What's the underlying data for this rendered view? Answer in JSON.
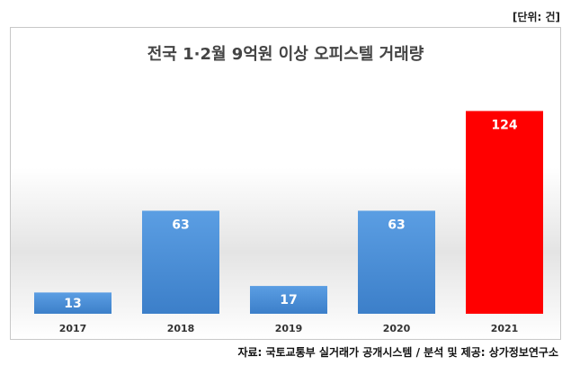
{
  "unit_label": "[단위: 건]",
  "source_text": "자료: 국토교통부 실거래가 공개시스템 / 분석 및 제공: 상가정보연구소",
  "chart_data": {
    "type": "bar",
    "title": "전국 1·2월 9억원 이상 오피스텔 거래량",
    "categories": [
      "2017",
      "2018",
      "2019",
      "2020",
      "2021"
    ],
    "values": [
      13,
      63,
      17,
      63,
      124
    ],
    "colors": [
      "#4a8fd8",
      "#4a8fd8",
      "#4a8fd8",
      "#4a8fd8",
      "#ff0000"
    ],
    "ylim": [
      0,
      160
    ],
    "grid": false,
    "data_labels": true
  }
}
